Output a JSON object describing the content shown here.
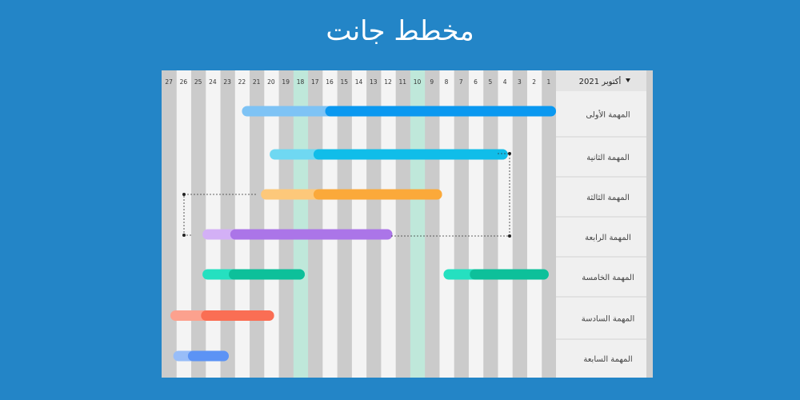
{
  "page": {
    "title": "مخطط جانت"
  },
  "colors": {
    "background": "#2385c7",
    "panel": "#f1f1f1",
    "column_light": "#f4f4f4",
    "column_dark": "#cbcbcb",
    "column_highlight": "#bfe8da",
    "task_panel": "#f0f0f0"
  },
  "chart_data": {
    "type": "gantt",
    "month_label": "أكتوبر 2021",
    "month_dropdown_icon": "triangle-down-icon",
    "days": [
      1,
      2,
      3,
      4,
      5,
      6,
      7,
      8,
      9,
      10,
      11,
      12,
      13,
      14,
      15,
      16,
      17,
      18,
      19,
      20,
      21,
      22,
      23,
      24,
      25,
      26,
      27
    ],
    "highlighted_days": [
      10,
      18
    ],
    "tasks": [
      {
        "name": "المهمة الأولى",
        "bars": [
          {
            "start": 1,
            "end": 22.5,
            "progress_start": 16.8,
            "color": "#0a98f0",
            "light": "#7ec3f5"
          }
        ]
      },
      {
        "name": "المهمة الثانية",
        "bars": [
          {
            "start": 4.3,
            "end": 20.6,
            "progress_start": 17.6,
            "color": "#10bde9",
            "light": "#6fd8f2"
          }
        ]
      },
      {
        "name": "المهمة الثالثة",
        "bars": [
          {
            "start": 8.8,
            "end": 21.2,
            "progress_start": 17.6,
            "color": "#fba93a",
            "light": "#fdc87a"
          }
        ]
      },
      {
        "name": "المهمة الرابعة",
        "bars": [
          {
            "start": 12.2,
            "end": 25.2,
            "progress_start": 23.3,
            "color": "#ab75e8",
            "light": "#d3b0f6"
          }
        ]
      },
      {
        "name": "المهمة الخامسة",
        "bars": [
          {
            "start": 18.2,
            "end": 25.2,
            "progress_start": 23.4,
            "color": "#0dc09a",
            "light": "#25e0c0"
          },
          {
            "start": 1.5,
            "end": 8.7,
            "progress_start": 6.9,
            "color": "#0dc09a",
            "light": "#25e0c0"
          }
        ]
      },
      {
        "name": "المهمة السادسة",
        "bars": [
          {
            "start": 20.3,
            "end": 27.4,
            "progress_start": 25.3,
            "color": "#fa6e54",
            "light": "#fca18e"
          }
        ]
      },
      {
        "name": "المهمة السابعة",
        "bars": [
          {
            "start": 23.4,
            "end": 27.2,
            "progress_start": 26.2,
            "color": "#5c93f5",
            "light": "#98bdf8"
          }
        ]
      }
    ],
    "dependencies": [
      {
        "from_task": 2,
        "to_task": 4,
        "from_day": 4.5,
        "to_day": 4.5
      },
      {
        "from_task": 3,
        "to_task": 4,
        "from_day": 26.2,
        "to_day": 26.2
      }
    ]
  }
}
